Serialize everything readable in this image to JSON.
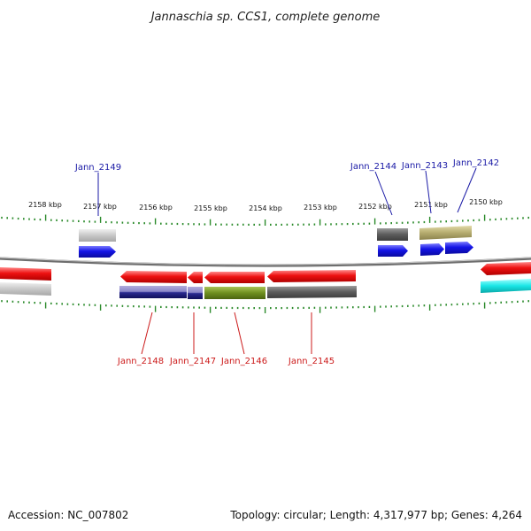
{
  "title": "Jannaschia sp. CCS1, complete genome",
  "footer": {
    "accession": "Accession: NC_007802",
    "stats": "Topology: circular; Length: 4,317,977 bp; Genes: 4,264"
  },
  "colors": {
    "backbone": "#8a8a8a",
    "tick": "#2a8a2a",
    "label_top": "#1a1aa6",
    "label_bottom": "#cc1b1b",
    "red": "#ee1111",
    "blue": "#1414e6",
    "gray_light": "#c8c8c8",
    "gray_dark": "#5c5c5c",
    "olive": "#6f8f1f",
    "khaki": "#b5ab6e",
    "navy": "#1a1a7a",
    "lavender": "#8a86c8",
    "cyan": "#19e6e6"
  },
  "kbp_labels": [
    "2158 kbp",
    "2157 kbp",
    "2156 kbp",
    "2155 kbp",
    "2154 kbp",
    "2153 kbp",
    "2152 kbp",
    "2151 kbp",
    "2150 kbp"
  ],
  "gene_labels_top": [
    "Jann_2149",
    "Jann_2144",
    "Jann_2143",
    "Jann_2142"
  ],
  "gene_labels_bottom": [
    "Jann_2148",
    "Jann_2147",
    "Jann_2146",
    "Jann_2145"
  ]
}
